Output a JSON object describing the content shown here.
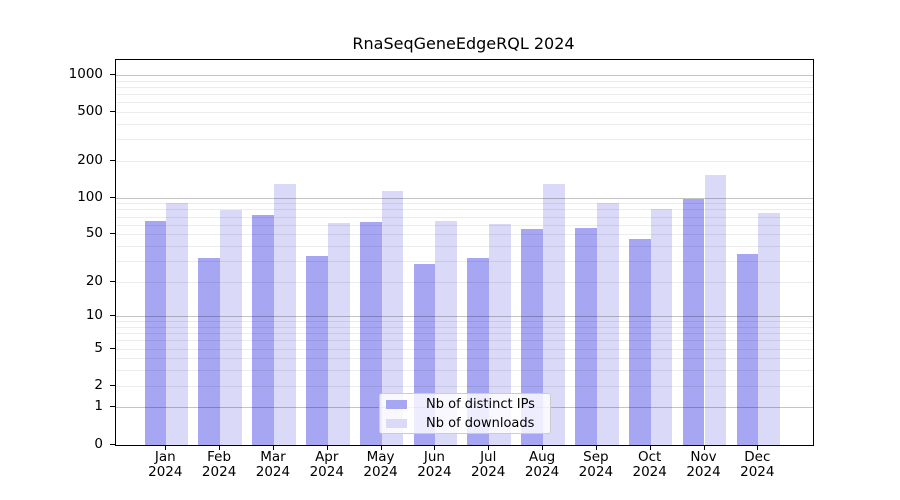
{
  "title": "RnaSeqGeneEdgeRQL 2024",
  "legend": {
    "items": [
      {
        "label": "Nb of distinct IPs",
        "color": "#a6a6f2"
      },
      {
        "label": "Nb of downloads",
        "color": "#dadaf8"
      }
    ]
  },
  "y_axis": {
    "tick_labels": [
      "0",
      "1",
      "2",
      "5",
      "10",
      "20",
      "50",
      "100",
      "200",
      "500",
      "1000"
    ]
  },
  "x_axis": {
    "months": [
      "Jan",
      "Feb",
      "Mar",
      "Apr",
      "May",
      "Jun",
      "Jul",
      "Aug",
      "Sep",
      "Oct",
      "Nov",
      "Dec"
    ],
    "year": "2024"
  },
  "colors": {
    "distinct_ips_bar": "#a6a6f2",
    "downloads_bar": "#dadaf8",
    "grid_major": "rgba(0,0,0,0.23)",
    "grid_minor": "rgba(0,0,0,0.075)",
    "axis": "#000000"
  },
  "chart_data": {
    "type": "bar",
    "title": "RnaSeqGeneEdgeRQL 2024",
    "categories": [
      "Jan 2024",
      "Feb 2024",
      "Mar 2024",
      "Apr 2024",
      "May 2024",
      "Jun 2024",
      "Jul 2024",
      "Aug 2024",
      "Sep 2024",
      "Oct 2024",
      "Nov 2024",
      "Dec 2024"
    ],
    "series": [
      {
        "name": "Nb of distinct IPs",
        "color": "#a6a6f2",
        "values": [
          64,
          32,
          72,
          33,
          63,
          28,
          32,
          55,
          56,
          46,
          98,
          34
        ]
      },
      {
        "name": "Nb of downloads",
        "color": "#dadaf8",
        "values": [
          90,
          79,
          130,
          62,
          113,
          64,
          61,
          130,
          91,
          81,
          153,
          75
        ]
      }
    ],
    "yscale": "log1p",
    "ylim": [
      0,
      1000
    ],
    "y_ticks": [
      0,
      1,
      2,
      5,
      10,
      20,
      50,
      100,
      200,
      500,
      1000
    ],
    "grid": "on",
    "legend_position": "lower center inside"
  }
}
